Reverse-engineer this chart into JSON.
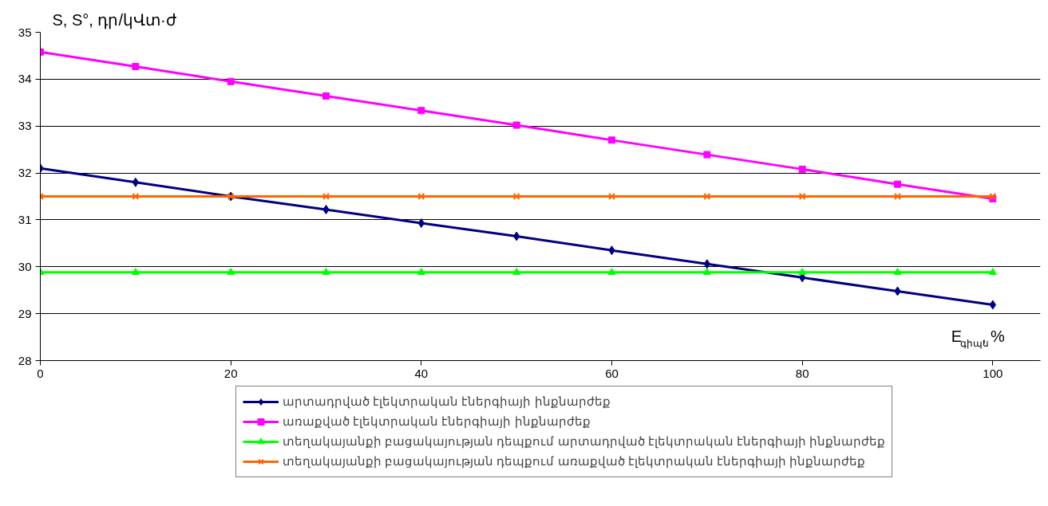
{
  "chart_data": {
    "type": "line",
    "ylabel": "S, S°, դր/կՎտ·ժ",
    "xlabel": "E$_{գիպս}$, %",
    "x": [
      0,
      10,
      20,
      30,
      40,
      50,
      60,
      70,
      80,
      90,
      100
    ],
    "xlim": [
      0,
      105
    ],
    "xticks": [
      0,
      20,
      40,
      60,
      80,
      100
    ],
    "ylim": [
      28,
      35
    ],
    "yticks": [
      28,
      29,
      30,
      31,
      32,
      33,
      34,
      35
    ],
    "grid": "y",
    "legend": "bottom",
    "line_style": "solid",
    "series": [
      {
        "name": "արտադրված էլեկտրական էներգիայի ինքնարժեք",
        "color": "#000080",
        "marker": "diamond",
        "values": [
          32.1,
          31.8,
          31.5,
          31.22,
          30.93,
          30.65,
          30.35,
          30.06,
          29.77,
          29.48,
          29.19
        ]
      },
      {
        "name": "առաքված էլեկտրական էներգիայի ինքնարժեք",
        "color": "#ff00ff",
        "marker": "square",
        "values": [
          34.58,
          34.27,
          33.95,
          33.64,
          33.33,
          33.02,
          32.7,
          32.39,
          32.08,
          31.76,
          31.45
        ]
      },
      {
        "name": "տեղակայանքի բացակայության դեպքում արտադրված էլեկտրական էներգիայի ինքնարժեք",
        "color": "#00ff00",
        "marker": "triangle",
        "values": [
          29.88,
          29.88,
          29.88,
          29.88,
          29.88,
          29.88,
          29.88,
          29.88,
          29.88,
          29.88,
          29.88
        ]
      },
      {
        "name": "տեղակայանքի բացակայության դեպքում առաքված էլեկտրական էներգիայի ինքնարժեք",
        "color": "#ff6600",
        "marker": "cross",
        "values": [
          31.5,
          31.5,
          31.5,
          31.5,
          31.5,
          31.5,
          31.5,
          31.5,
          31.5,
          31.5,
          31.5
        ]
      }
    ]
  }
}
